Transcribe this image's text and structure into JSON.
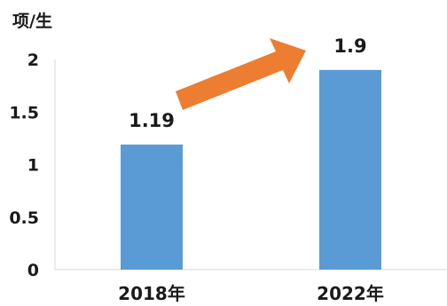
{
  "chart_data": {
    "type": "bar",
    "ylabel": "项/生",
    "categories": [
      "2018年",
      "2022年"
    ],
    "values": [
      1.19,
      1.9
    ],
    "data_labels": [
      "1.19",
      "1.9"
    ],
    "ylim": [
      0,
      2
    ],
    "yticks": [
      0,
      0.5,
      1,
      1.5,
      2
    ],
    "ytick_labels": [
      "0",
      "0.5",
      "1",
      "1.5",
      "2"
    ],
    "grid": false,
    "bar_color": "#5b9bd5",
    "arrow_color": "#ed7d31",
    "annotation": "arrow from 2018年 bar to 2022年 bar indicating increase"
  }
}
